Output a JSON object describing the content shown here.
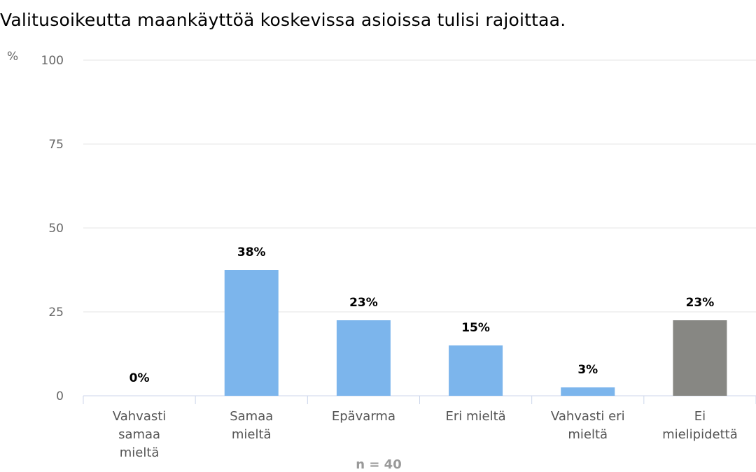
{
  "chart_data": {
    "type": "bar",
    "title": "Valitusoikeutta maankäyttöä koskevissa asioissa tulisi rajoittaa.",
    "ylabel": "%",
    "ylim": [
      0,
      100
    ],
    "yticks": [
      0,
      25,
      50,
      75,
      100
    ],
    "grid": true,
    "categories": [
      [
        "Vahvasti",
        "samaa",
        "mieltä"
      ],
      [
        "Samaa",
        "mieltä"
      ],
      [
        "Epävarma"
      ],
      [
        "Eri mieltä"
      ],
      [
        "Vahvasti eri",
        "mieltä"
      ],
      [
        "Ei",
        "mielipidettä"
      ]
    ],
    "values": [
      0,
      37.5,
      22.5,
      15,
      2.5,
      22.5
    ],
    "data_labels": [
      "0%",
      "38%",
      "23%",
      "15%",
      "3%",
      "23%"
    ],
    "colors": [
      "#7cb5ec",
      "#7cb5ec",
      "#7cb5ec",
      "#7cb5ec",
      "#7cb5ec",
      "#878783"
    ],
    "footnote": "n = 40"
  }
}
